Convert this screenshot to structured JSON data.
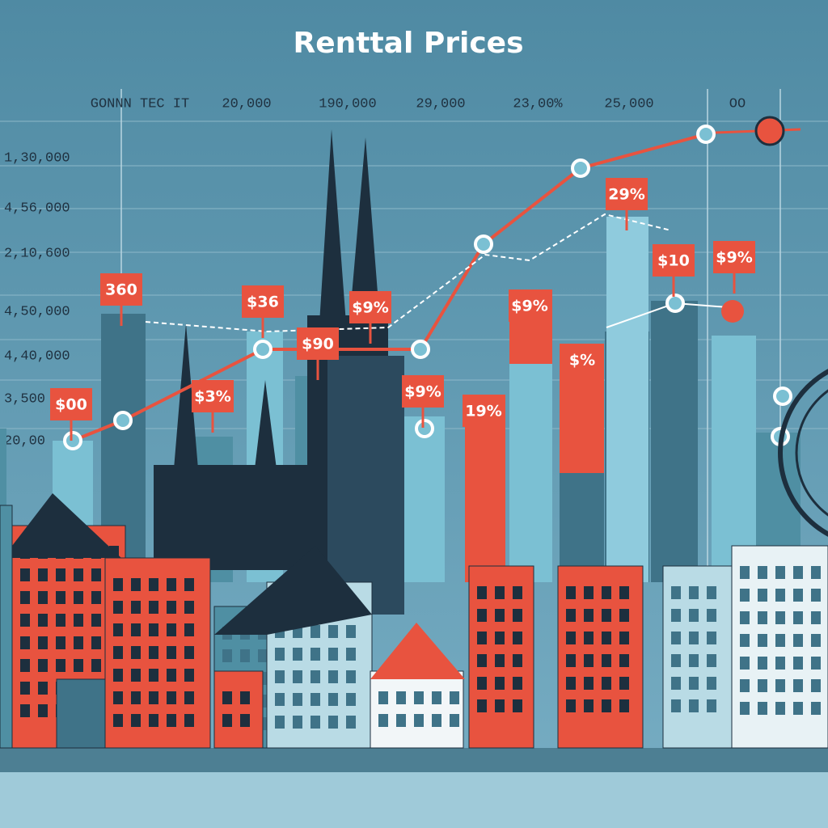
{
  "title": "Renttal Prices",
  "top_labels": [
    "GONNN TEC IT",
    "20,000",
    "190,000",
    "29,000",
    "23,00%",
    "25,000",
    "OO"
  ],
  "side_labels": [
    "1,30,000",
    "4,56,000",
    "2,10,600",
    "4,50,000",
    "4,40,000",
    "3,500",
    "20,00"
  ],
  "tags": [
    "360",
    "$00",
    "$36",
    "$3%",
    "$90",
    "$9%",
    "$9%",
    "19%",
    "$9%",
    "$%",
    "29%",
    "$10",
    "$9%"
  ]
}
